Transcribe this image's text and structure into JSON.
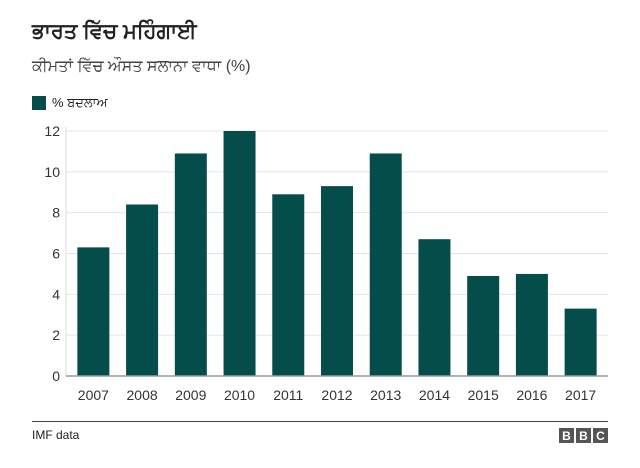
{
  "chart_data": {
    "type": "bar",
    "title": "ਭਾਰਤ ਵਿੱਚ ਮਹਿੰਗਾਈ",
    "subtitle": "ਕੀਮਤਾਂ ਵਿੱਚ ਔਸਤ ਸਲਾਨਾ ਵਾਧਾ (%)",
    "legend": [
      "% ਬਦਲਾਅ"
    ],
    "categories": [
      "2007",
      "2008",
      "2009",
      "2010",
      "2011",
      "2012",
      "2013",
      "2014",
      "2015",
      "2016",
      "2017"
    ],
    "values": [
      6.3,
      8.4,
      10.9,
      12.0,
      8.9,
      9.3,
      10.9,
      6.7,
      4.9,
      5.0,
      3.3
    ],
    "yticks": [
      "0",
      "2",
      "4",
      "6",
      "8",
      "10",
      "12"
    ],
    "ylim": [
      0,
      12
    ],
    "xlabel": "",
    "ylabel": "",
    "grid": true,
    "color": "#054d4a"
  },
  "source": "IMF data",
  "logo": [
    "B",
    "B",
    "C"
  ]
}
